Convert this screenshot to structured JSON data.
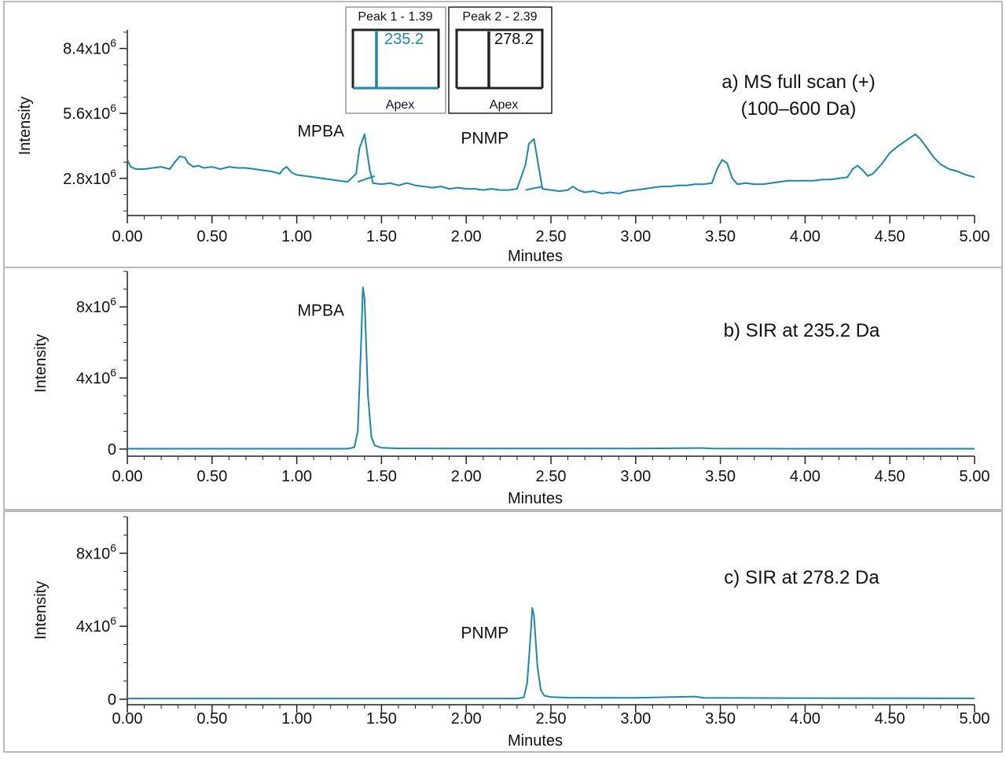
{
  "colors": {
    "trace": "#1b87ad",
    "axis": "#222222",
    "frame": "#bbbbbb"
  },
  "x_axis": {
    "label": "Minutes",
    "ticks": [
      "0.00",
      "0.50",
      "1.00",
      "1.50",
      "2.00",
      "2.50",
      "3.00",
      "3.50",
      "4.00",
      "4.50",
      "5.00"
    ]
  },
  "inset": {
    "peak1": {
      "title": "Peak 1 - 1.39",
      "mz": "235.2",
      "footer": "Apex"
    },
    "peak2": {
      "title": "Peak 2 - 2.39",
      "mz": "278.2",
      "footer": "Apex"
    }
  },
  "chart_data": [
    {
      "type": "line",
      "panel": "a",
      "title": "a) MS full scan (+)",
      "subtitle": "(100–600 Da)",
      "xlabel": "Minutes",
      "ylabel": "Intensity",
      "xlim": [
        0,
        5
      ],
      "ylim": [
        1200000,
        9200000
      ],
      "y_tick_labels": [
        {
          "mant": "2.8x10",
          "exp": "6",
          "value": 2800000
        },
        {
          "mant": "5.6x10",
          "exp": "6",
          "value": 5600000
        },
        {
          "mant": "8.4x10",
          "exp": "6",
          "value": 8400000
        }
      ],
      "annotations": [
        {
          "text": "MPBA",
          "x": 1.28,
          "y": 4600000
        },
        {
          "text": "PNMP",
          "x": 2.25,
          "y": 4300000
        }
      ],
      "series": [
        {
          "x": [
            0.0,
            0.02,
            0.05,
            0.1,
            0.15,
            0.2,
            0.25,
            0.28,
            0.31,
            0.34,
            0.36,
            0.39,
            0.42,
            0.45,
            0.5,
            0.55,
            0.6,
            0.65,
            0.7,
            0.75,
            0.8,
            0.85,
            0.9,
            0.92,
            0.94,
            0.97,
            1.0,
            1.05,
            1.1,
            1.15,
            1.2,
            1.25,
            1.3,
            1.35,
            1.37,
            1.4,
            1.43,
            1.45,
            1.5,
            1.55,
            1.6,
            1.65,
            1.7,
            1.75,
            1.8,
            1.85,
            1.9,
            1.95,
            2.0,
            2.05,
            2.1,
            2.15,
            2.2,
            2.25,
            2.3,
            2.35,
            2.37,
            2.4,
            2.43,
            2.45,
            2.5,
            2.55,
            2.6,
            2.63,
            2.66,
            2.7,
            2.75,
            2.8,
            2.85,
            2.9,
            2.95,
            3.0,
            3.05,
            3.1,
            3.15,
            3.2,
            3.25,
            3.3,
            3.35,
            3.4,
            3.45,
            3.48,
            3.51,
            3.54,
            3.57,
            3.6,
            3.65,
            3.7,
            3.75,
            3.8,
            3.85,
            3.9,
            3.95,
            4.0,
            4.05,
            4.1,
            4.15,
            4.2,
            4.25,
            4.28,
            4.31,
            4.34,
            4.37,
            4.4,
            4.45,
            4.5,
            4.55,
            4.6,
            4.65,
            4.68,
            4.72,
            4.76,
            4.8,
            4.85,
            4.9,
            4.95,
            5.0
          ],
          "y": [
            3600000,
            3300000,
            3200000,
            3200000,
            3250000,
            3300000,
            3200000,
            3500000,
            3750000,
            3700000,
            3450000,
            3300000,
            3350000,
            3250000,
            3300000,
            3200000,
            3300000,
            3250000,
            3250000,
            3200000,
            3150000,
            3100000,
            3000000,
            3200000,
            3300000,
            3050000,
            2950000,
            2900000,
            2850000,
            2800000,
            2750000,
            2700000,
            2650000,
            3000000,
            4100000,
            4700000,
            3200000,
            2600000,
            2550000,
            2600000,
            2500000,
            2600000,
            2500000,
            2450000,
            2400000,
            2450000,
            2350000,
            2400000,
            2350000,
            2350000,
            2300000,
            2350000,
            2300000,
            2300000,
            2350000,
            3400000,
            4300000,
            4500000,
            3200000,
            2350000,
            2300000,
            2250000,
            2300000,
            2450000,
            2300000,
            2200000,
            2250000,
            2150000,
            2200000,
            2150000,
            2250000,
            2300000,
            2350000,
            2400000,
            2450000,
            2450000,
            2500000,
            2500000,
            2550000,
            2550000,
            2600000,
            3200000,
            3600000,
            3450000,
            2800000,
            2550000,
            2600000,
            2550000,
            2550000,
            2600000,
            2650000,
            2700000,
            2700000,
            2700000,
            2700000,
            2750000,
            2750000,
            2800000,
            2850000,
            3200000,
            3350000,
            3150000,
            2900000,
            3000000,
            3400000,
            3900000,
            4200000,
            4450000,
            4700000,
            4500000,
            4100000,
            3700000,
            3400000,
            3200000,
            3100000,
            2950000,
            2850000
          ]
        }
      ]
    },
    {
      "type": "line",
      "panel": "b",
      "title": "b) SIR at 235.2 Da",
      "xlabel": "Minutes",
      "ylabel": "Intensity",
      "xlim": [
        0,
        5
      ],
      "ylim": [
        -400000,
        10000000
      ],
      "y_tick_labels": [
        {
          "mant": "0",
          "exp": "",
          "value": 0
        },
        {
          "mant": "4x10",
          "exp": "6",
          "value": 4000000
        },
        {
          "mant": "8x10",
          "exp": "6",
          "value": 8000000
        }
      ],
      "annotations": [
        {
          "text": "MPBA",
          "x": 1.28,
          "y": 7500000
        }
      ],
      "series": [
        {
          "x": [
            0.0,
            1.3,
            1.34,
            1.36,
            1.38,
            1.39,
            1.4,
            1.42,
            1.44,
            1.46,
            1.5,
            1.6,
            2.0,
            3.0,
            3.4,
            3.45,
            4.0,
            5.0
          ],
          "y": [
            20000,
            20000,
            100000,
            1000000,
            6000000,
            9100000,
            8500000,
            3000000,
            700000,
            200000,
            80000,
            40000,
            30000,
            30000,
            60000,
            30000,
            20000,
            20000
          ]
        }
      ]
    },
    {
      "type": "line",
      "panel": "c",
      "title": "c) SIR at 278.2 Da",
      "xlabel": "Minutes",
      "ylabel": "Intensity",
      "xlim": [
        0,
        5
      ],
      "ylim": [
        -300000,
        10000000
      ],
      "y_tick_labels": [
        {
          "mant": "0",
          "exp": "",
          "value": 0
        },
        {
          "mant": "4x10",
          "exp": "6",
          "value": 4000000
        },
        {
          "mant": "8x10",
          "exp": "6",
          "value": 8000000
        }
      ],
      "annotations": [
        {
          "text": "PNMP",
          "x": 2.25,
          "y": 3350000
        }
      ],
      "series": [
        {
          "x": [
            0.0,
            2.3,
            2.34,
            2.36,
            2.38,
            2.39,
            2.4,
            2.42,
            2.44,
            2.46,
            2.5,
            2.6,
            3.0,
            3.35,
            3.4,
            4.0,
            5.0
          ],
          "y": [
            40000,
            40000,
            100000,
            900000,
            3500000,
            5000000,
            4600000,
            1800000,
            500000,
            200000,
            120000,
            90000,
            80000,
            150000,
            80000,
            60000,
            50000
          ]
        }
      ]
    }
  ]
}
